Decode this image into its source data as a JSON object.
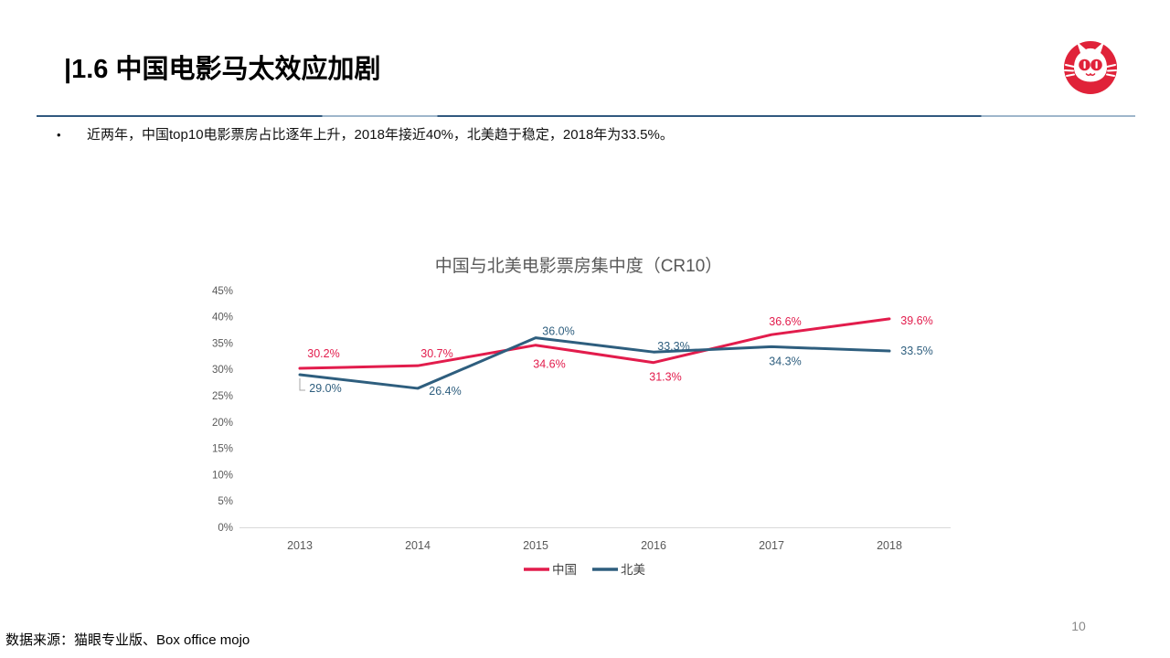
{
  "slide": {
    "title": "|1.6 中国电影马太效应加剧",
    "bullet_marker": "•",
    "bullet": "近两年，中国top10电影票房占比逐年上升，2018年接近40%，北美趋于稳定，2018年为33.5%。",
    "source": "数据来源：猫眼专业版、Box office mojo",
    "page_number": "10"
  },
  "logo": {
    "name": "maoyan-cat-logo",
    "color": "#e02239"
  },
  "colors": {
    "divider_dark": "#31597f",
    "divider_light": "#9fb6cb",
    "axis_line": "#d9d9d9",
    "tick_text": "#595959",
    "legend_text": "#404040",
    "leader_line": "#a6a6a6",
    "china_red": "#e21c4c",
    "north_america_blue": "#2e5e7e"
  },
  "chart_data": {
    "type": "line",
    "title": "中国与北美电影票房集中度（CR10）",
    "categories": [
      "2013",
      "2014",
      "2015",
      "2016",
      "2017",
      "2018"
    ],
    "series": [
      {
        "name": "中国",
        "color": "#e21c4c",
        "values": [
          30.2,
          30.7,
          34.6,
          31.3,
          36.6,
          39.6
        ]
      },
      {
        "name": "北美",
        "color": "#2e5e7e",
        "values": [
          29.0,
          26.4,
          36.0,
          33.3,
          34.3,
          33.5
        ]
      }
    ],
    "xlabel": "",
    "ylabel": "",
    "ylim": [
      0,
      45
    ],
    "ytick_step": 5,
    "ytick_suffix": "%",
    "value_suffix": "%",
    "grid": false,
    "legend_position": "bottom"
  }
}
